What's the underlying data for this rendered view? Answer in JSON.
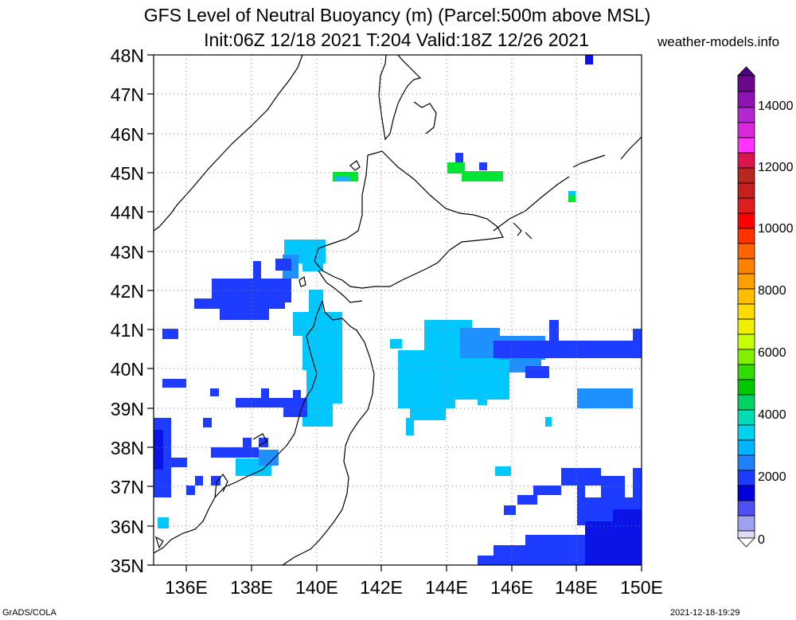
{
  "title_line1": "GFS Level of Neutral Buoyancy (m) (Parcel:500m above MSL)",
  "title_line2": "Init:06Z 12/18 2021 T:204 Valid:18Z 12/26 2021",
  "site": "weather-models.info",
  "footer_left": "GrADS/COLA",
  "footer_right": "2021-12-18-19:29",
  "lat_labels": [
    "48N",
    "47N",
    "46N",
    "45N",
    "44N",
    "43N",
    "42N",
    "41N",
    "40N",
    "39N",
    "38N",
    "37N",
    "36N",
    "35N"
  ],
  "lon_labels": [
    "136E",
    "138E",
    "140E",
    "142E",
    "144E",
    "146E",
    "148E",
    "150E"
  ],
  "colorbar_labels": [
    "14000",
    "12000",
    "10000",
    "8000",
    "6000",
    "4000",
    "2000",
    "0"
  ],
  "colors": {
    "cyan_band": "#00c8ff",
    "light_blue": "#1e90ff",
    "blue": "#1e3cff",
    "dark_blue": "#0a14e6",
    "green": "#00e632"
  }
}
